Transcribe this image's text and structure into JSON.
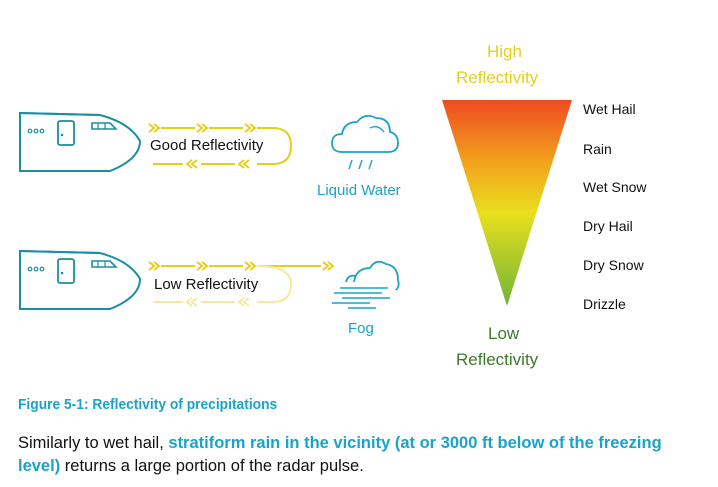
{
  "scenarios": [
    {
      "reflectivity_label": "Good Reflectivity",
      "target_label": "Liquid Water",
      "target_icon": "rain-cloud-icon"
    },
    {
      "reflectivity_label": "Low Reflectivity",
      "target_label": "Fog",
      "target_icon": "fog-cloud-icon"
    }
  ],
  "scale": {
    "top_label_line1": "High",
    "top_label_line2": "Reflectivity",
    "bottom_label_line1": "Low",
    "bottom_label_line2": "Reflectivity",
    "levels": [
      "Wet Hail",
      "Rain",
      "Wet Snow",
      "Dry Hail",
      "Dry Snow",
      "Drizzle"
    ],
    "gradient_colors": [
      "#ef4b22",
      "#f2a21c",
      "#e9df1e",
      "#6fb536"
    ]
  },
  "colors": {
    "accent": "#1aa3c8",
    "arrow_yellow": "#e6cf1a",
    "low_green": "#3c7a2a",
    "aircraft": "#1a8fa0"
  },
  "caption": "Figure 5-1: Reflectivity of precipitations",
  "body": {
    "intro": "Similarly to wet hail, ",
    "highlight": "stratiform rain in the vicinity (at or 3000 ft below of the freezing level)",
    "outro": " returns a large portion of the radar pulse."
  }
}
